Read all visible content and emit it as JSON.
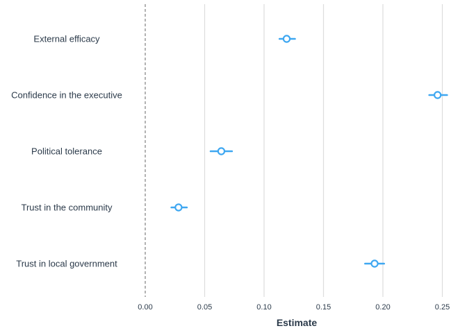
{
  "chart_data": {
    "type": "scatter",
    "subtype": "coefficient-plot",
    "xlabel": "Estimate",
    "ylabel": "",
    "xlim": [
      0.0,
      0.256
    ],
    "xticks": [
      0.0,
      0.05,
      0.1,
      0.15,
      0.2,
      0.25
    ],
    "xtick_labels": [
      "0.00",
      "0.05",
      "0.10",
      "0.15",
      "0.20",
      "0.25"
    ],
    "reference_line": 0.0,
    "grid": "vertical",
    "legend": "none",
    "color": "#3ea7f1",
    "points": [
      {
        "label": "External efficacy",
        "estimate": 0.119,
        "ci": [
          0.113,
          0.126
        ]
      },
      {
        "label": "Confidence in the executive",
        "estimate": 0.246,
        "ci": [
          0.239,
          0.254
        ]
      },
      {
        "label": "Political tolerance",
        "estimate": 0.064,
        "ci": [
          0.055,
          0.073
        ]
      },
      {
        "label": "Trust in the community",
        "estimate": 0.028,
        "ci": [
          0.022,
          0.035
        ]
      },
      {
        "label": "Trust in local government",
        "estimate": 0.193,
        "ci": [
          0.185,
          0.201
        ]
      }
    ]
  }
}
